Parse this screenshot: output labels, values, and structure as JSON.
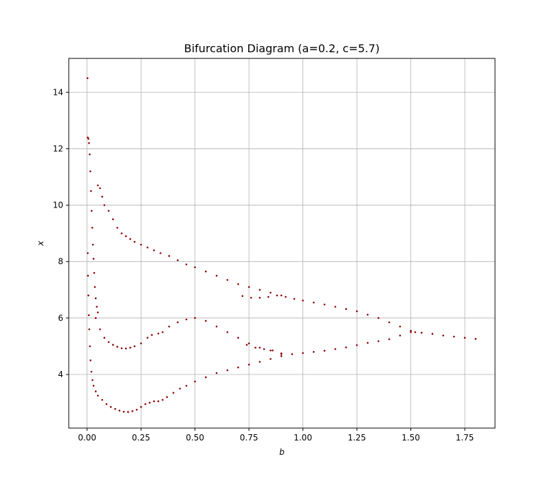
{
  "chart_data": {
    "type": "scatter",
    "title": "Bifurcation Diagram (a=0.2, c=5.7)",
    "xlabel": "b",
    "ylabel": "x",
    "xlim": [
      -0.085,
      1.89
    ],
    "ylim": [
      2.1,
      15.2
    ],
    "x_ticks": [
      0.0,
      0.25,
      0.5,
      0.75,
      1.0,
      1.25,
      1.5,
      1.75
    ],
    "x_tick_labels": [
      "0.00",
      "0.25",
      "0.50",
      "0.75",
      "1.00",
      "1.25",
      "1.50",
      "1.75"
    ],
    "y_ticks": [
      4,
      6,
      8,
      10,
      12,
      14
    ],
    "y_tick_labels": [
      "4",
      "6",
      "8",
      "10",
      "12",
      "14"
    ],
    "grid": true,
    "legend": "none",
    "marker_color": "#8b0000",
    "series": [
      {
        "points": [
          [
            0.002,
            14.5
          ],
          [
            0.003,
            12.4
          ],
          [
            0.006,
            12.35
          ],
          [
            0.009,
            12.2
          ],
          [
            0.012,
            11.8
          ],
          [
            0.015,
            11.2
          ],
          [
            0.018,
            10.5
          ],
          [
            0.021,
            9.8
          ],
          [
            0.024,
            9.2
          ],
          [
            0.027,
            8.6
          ],
          [
            0.03,
            8.1
          ],
          [
            0.033,
            7.6
          ],
          [
            0.036,
            7.1
          ],
          [
            0.04,
            6.7
          ],
          [
            0.045,
            6.4
          ],
          [
            0.05,
            6.2
          ],
          [
            0.003,
            8.3
          ],
          [
            0.004,
            7.5
          ],
          [
            0.006,
            6.8
          ],
          [
            0.008,
            6.1
          ],
          [
            0.01,
            5.6
          ],
          [
            0.013,
            5.0
          ],
          [
            0.016,
            4.5
          ],
          [
            0.02,
            4.1
          ],
          [
            0.025,
            3.8
          ],
          [
            0.03,
            3.6
          ],
          [
            0.04,
            3.4
          ],
          [
            0.05,
            3.25
          ],
          [
            0.07,
            3.1
          ],
          [
            0.09,
            2.95
          ],
          [
            0.11,
            2.85
          ],
          [
            0.13,
            2.78
          ],
          [
            0.15,
            2.72
          ],
          [
            0.17,
            2.68
          ],
          [
            0.19,
            2.67
          ],
          [
            0.21,
            2.7
          ],
          [
            0.23,
            2.75
          ],
          [
            0.25,
            2.85
          ],
          [
            0.27,
            2.95
          ],
          [
            0.29,
            3.0
          ],
          [
            0.31,
            3.05
          ],
          [
            0.33,
            3.05
          ],
          [
            0.35,
            3.1
          ],
          [
            0.37,
            3.2
          ],
          [
            0.4,
            3.35
          ],
          [
            0.43,
            3.5
          ],
          [
            0.46,
            3.6
          ],
          [
            0.5,
            3.75
          ],
          [
            0.55,
            3.9
          ],
          [
            0.6,
            4.05
          ],
          [
            0.65,
            4.15
          ],
          [
            0.7,
            4.25
          ],
          [
            0.75,
            4.35
          ],
          [
            0.8,
            4.45
          ],
          [
            0.85,
            4.55
          ],
          [
            0.9,
            4.65
          ],
          [
            0.05,
            10.7
          ],
          [
            0.06,
            10.6
          ],
          [
            0.07,
            10.3
          ],
          [
            0.08,
            10.0
          ],
          [
            0.1,
            9.8
          ],
          [
            0.12,
            9.5
          ],
          [
            0.14,
            9.2
          ],
          [
            0.16,
            9.0
          ],
          [
            0.18,
            8.9
          ],
          [
            0.2,
            8.8
          ],
          [
            0.22,
            8.7
          ],
          [
            0.25,
            8.6
          ],
          [
            0.28,
            8.5
          ],
          [
            0.31,
            8.4
          ],
          [
            0.34,
            8.3
          ],
          [
            0.38,
            8.2
          ],
          [
            0.42,
            8.05
          ],
          [
            0.46,
            7.9
          ],
          [
            0.5,
            7.8
          ],
          [
            0.55,
            7.65
          ],
          [
            0.6,
            7.5
          ],
          [
            0.65,
            7.35
          ],
          [
            0.7,
            7.2
          ],
          [
            0.75,
            7.1
          ],
          [
            0.8,
            7.0
          ],
          [
            0.85,
            6.9
          ],
          [
            0.9,
            6.8
          ],
          [
            0.04,
            6.0
          ],
          [
            0.06,
            5.6
          ],
          [
            0.08,
            5.3
          ],
          [
            0.1,
            5.15
          ],
          [
            0.12,
            5.05
          ],
          [
            0.14,
            4.98
          ],
          [
            0.16,
            4.93
          ],
          [
            0.18,
            4.92
          ],
          [
            0.2,
            4.95
          ],
          [
            0.22,
            5.0
          ],
          [
            0.25,
            5.1
          ],
          [
            0.28,
            5.3
          ],
          [
            0.3,
            5.4
          ],
          [
            0.33,
            5.45
          ],
          [
            0.35,
            5.5
          ],
          [
            0.38,
            5.7
          ],
          [
            0.42,
            5.85
          ],
          [
            0.46,
            5.95
          ],
          [
            0.5,
            6.0
          ],
          [
            0.55,
            5.9
          ],
          [
            0.6,
            5.7
          ],
          [
            0.65,
            5.5
          ],
          [
            0.7,
            5.3
          ],
          [
            0.75,
            5.1
          ],
          [
            0.8,
            4.95
          ],
          [
            0.85,
            4.85
          ],
          [
            0.9,
            4.75
          ],
          [
            0.72,
            6.78
          ],
          [
            0.76,
            6.72
          ],
          [
            0.8,
            6.72
          ],
          [
            0.84,
            6.75
          ],
          [
            0.88,
            6.8
          ],
          [
            0.92,
            6.75
          ],
          [
            0.96,
            6.68
          ],
          [
            1.0,
            6.62
          ],
          [
            1.05,
            6.55
          ],
          [
            1.1,
            6.48
          ],
          [
            1.15,
            6.4
          ],
          [
            1.2,
            6.32
          ],
          [
            1.25,
            6.24
          ],
          [
            1.3,
            6.12
          ],
          [
            1.35,
            6.0
          ],
          [
            1.4,
            5.85
          ],
          [
            1.45,
            5.7
          ],
          [
            1.5,
            5.55
          ],
          [
            0.74,
            5.05
          ],
          [
            0.78,
            4.95
          ],
          [
            0.82,
            4.9
          ],
          [
            0.86,
            4.85
          ],
          [
            0.9,
            4.72
          ],
          [
            0.95,
            4.72
          ],
          [
            1.0,
            4.76
          ],
          [
            1.05,
            4.8
          ],
          [
            1.1,
            4.84
          ],
          [
            1.15,
            4.9
          ],
          [
            1.2,
            4.96
          ],
          [
            1.25,
            5.04
          ],
          [
            1.3,
            5.12
          ],
          [
            1.35,
            5.18
          ],
          [
            1.4,
            5.25
          ],
          [
            1.45,
            5.38
          ],
          [
            1.5,
            5.5
          ],
          [
            1.52,
            5.5
          ],
          [
            1.55,
            5.48
          ],
          [
            1.6,
            5.44
          ],
          [
            1.65,
            5.38
          ],
          [
            1.7,
            5.34
          ],
          [
            1.75,
            5.3
          ],
          [
            1.8,
            5.26
          ]
        ]
      }
    ]
  }
}
